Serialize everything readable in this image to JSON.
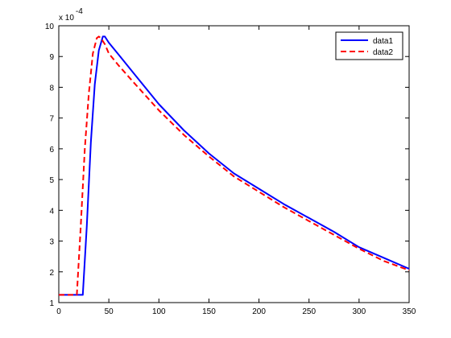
{
  "chart_data": {
    "type": "line",
    "title": "",
    "xlabel": "",
    "ylabel": "",
    "xlim": [
      0,
      350
    ],
    "ylim": [
      1,
      10
    ],
    "y_exponent_label": "x 10",
    "y_exponent_power": "-4",
    "xticks": [
      "0",
      "50",
      "100",
      "150",
      "200",
      "250",
      "300",
      "350"
    ],
    "yticks": [
      "1",
      "2",
      "3",
      "4",
      "5",
      "6",
      "7",
      "8",
      "9",
      "10"
    ],
    "grid": false,
    "legend_position": "top-right",
    "series": [
      {
        "name": "data1",
        "color": "#0000ff",
        "style": "solid",
        "x": [
          0,
          10,
          20,
          24,
          28,
          32,
          36,
          40,
          44,
          46,
          50,
          60,
          75,
          100,
          125,
          150,
          175,
          200,
          225,
          250,
          275,
          300,
          325,
          350
        ],
        "y": [
          1.25,
          1.25,
          1.25,
          1.25,
          3.5,
          6.2,
          8.1,
          9.2,
          9.65,
          9.65,
          9.45,
          9.05,
          8.45,
          7.45,
          6.6,
          5.85,
          5.2,
          4.7,
          4.2,
          3.75,
          3.3,
          2.8,
          2.45,
          2.1
        ]
      },
      {
        "name": "data2",
        "color": "#ff0000",
        "style": "dashed",
        "x": [
          0,
          10,
          18,
          22,
          26,
          30,
          34,
          38,
          40,
          42,
          46,
          50,
          60,
          75,
          100,
          125,
          150,
          175,
          200,
          225,
          250,
          275,
          300,
          325,
          350
        ],
        "y": [
          1.25,
          1.25,
          1.25,
          3.5,
          6.0,
          7.8,
          9.1,
          9.6,
          9.65,
          9.6,
          9.4,
          9.1,
          8.7,
          8.15,
          7.25,
          6.45,
          5.75,
          5.1,
          4.6,
          4.1,
          3.65,
          3.2,
          2.75,
          2.35,
          2.05
        ]
      }
    ]
  }
}
